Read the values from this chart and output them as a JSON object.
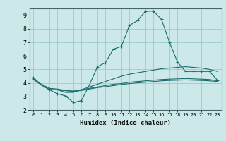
{
  "xlabel": "Humidex (Indice chaleur)",
  "bg_color": "#cce8e8",
  "grid_color": "#99cccc",
  "line_color": "#1a6b6b",
  "xlim": [
    -0.5,
    23.5
  ],
  "ylim": [
    2,
    9.5
  ],
  "x_ticks": [
    0,
    1,
    2,
    3,
    4,
    5,
    6,
    7,
    8,
    9,
    10,
    11,
    12,
    13,
    14,
    15,
    16,
    17,
    18,
    19,
    20,
    21,
    22,
    23
  ],
  "y_ticks": [
    2,
    3,
    4,
    5,
    6,
    7,
    8,
    9
  ],
  "series": [
    {
      "x": [
        0,
        1,
        2,
        3,
        4,
        5,
        6,
        7,
        8,
        9,
        10,
        11,
        12,
        13,
        14,
        15,
        16,
        17,
        18,
        19,
        20,
        21,
        22,
        23
      ],
      "y": [
        4.4,
        3.85,
        3.5,
        3.2,
        3.05,
        2.55,
        2.7,
        3.85,
        5.2,
        5.5,
        6.5,
        6.7,
        8.25,
        8.6,
        9.3,
        9.3,
        8.7,
        7.0,
        5.55,
        4.85,
        4.85,
        4.85,
        4.85,
        4.2
      ],
      "marker": "+"
    },
    {
      "x": [
        0,
        1,
        2,
        3,
        4,
        5,
        6,
        7,
        8,
        9,
        10,
        11,
        12,
        13,
        14,
        15,
        16,
        17,
        18,
        19,
        20,
        21,
        22,
        23
      ],
      "y": [
        4.3,
        3.85,
        3.5,
        3.5,
        3.3,
        3.3,
        3.5,
        3.7,
        3.9,
        4.1,
        4.3,
        4.5,
        4.65,
        4.75,
        4.85,
        4.95,
        5.05,
        5.1,
        5.15,
        5.2,
        5.15,
        5.1,
        5.0,
        4.85
      ],
      "marker": null
    },
    {
      "x": [
        0,
        1,
        2,
        3,
        4,
        5,
        6,
        7,
        8,
        9,
        10,
        11,
        12,
        13,
        14,
        15,
        16,
        17,
        18,
        19,
        20,
        21,
        22,
        23
      ],
      "y": [
        4.3,
        3.9,
        3.6,
        3.55,
        3.45,
        3.4,
        3.5,
        3.6,
        3.7,
        3.8,
        3.9,
        3.95,
        4.05,
        4.1,
        4.15,
        4.2,
        4.25,
        4.28,
        4.3,
        4.33,
        4.3,
        4.28,
        4.25,
        4.15
      ],
      "marker": null
    },
    {
      "x": [
        0,
        1,
        2,
        3,
        4,
        5,
        6,
        7,
        8,
        9,
        10,
        11,
        12,
        13,
        14,
        15,
        16,
        17,
        18,
        19,
        20,
        21,
        22,
        23
      ],
      "y": [
        4.25,
        3.85,
        3.52,
        3.48,
        3.42,
        3.38,
        3.44,
        3.55,
        3.65,
        3.72,
        3.8,
        3.88,
        3.95,
        4.0,
        4.05,
        4.1,
        4.15,
        4.18,
        4.2,
        4.22,
        4.2,
        4.18,
        4.15,
        4.1
      ],
      "marker": null
    }
  ]
}
